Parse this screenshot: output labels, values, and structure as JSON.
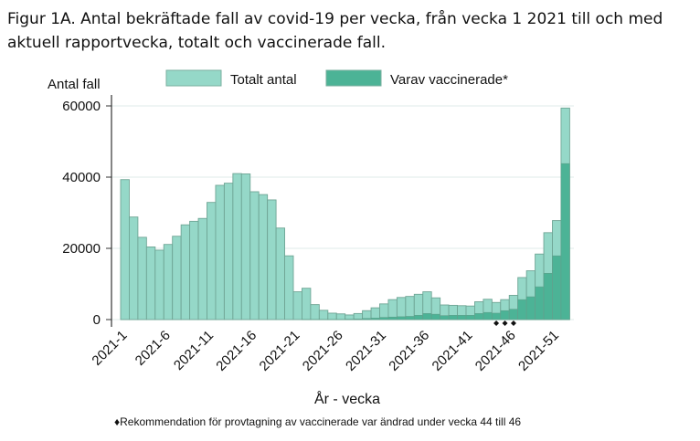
{
  "title": "Figur 1A. Antal bekräftade fall av covid-19 per vecka, från vecka 1 2021 till och med aktuell rapportvecka, totalt och vaccinerade fall.",
  "chart_data": {
    "type": "bar",
    "title": "Figur 1A. Antal bekräftade fall av covid-19 per vecka, från vecka 1 2021 till och med aktuell rapportvecka, totalt och vaccinerade fall.",
    "xlabel": "År - vecka",
    "ylabel": "Antal fall",
    "ylim": [
      0,
      60000
    ],
    "yticks": [
      "0",
      "20000",
      "40000",
      "60000"
    ],
    "ytick_values": [
      0,
      20000,
      40000,
      60000
    ],
    "xtick_labels": [
      "2021-1",
      "2021-6",
      "2021-11",
      "2021-16",
      "2021-21",
      "2021-26",
      "2021-31",
      "2021-36",
      "2021-41",
      "2021-46",
      "2021-51"
    ],
    "xtick_weeks": [
      1,
      6,
      11,
      16,
      21,
      26,
      31,
      36,
      41,
      46,
      51
    ],
    "weeks": [
      1,
      2,
      3,
      4,
      5,
      6,
      7,
      8,
      9,
      10,
      11,
      12,
      13,
      14,
      15,
      16,
      17,
      18,
      19,
      20,
      21,
      22,
      23,
      24,
      25,
      26,
      27,
      28,
      29,
      30,
      31,
      32,
      33,
      34,
      35,
      36,
      37,
      38,
      39,
      40,
      41,
      42,
      43,
      44,
      45,
      46,
      47,
      48,
      49,
      50,
      51,
      52
    ],
    "legend": [
      "Totalt antal",
      "Varav vaccinerade*"
    ],
    "legend_placement": "top",
    "grid": true,
    "series": [
      {
        "name": "Totalt antal",
        "color": "#95d8c8",
        "values": [
          39300,
          28800,
          23100,
          20400,
          19500,
          21100,
          23400,
          26600,
          27600,
          28400,
          32900,
          37700,
          38300,
          41000,
          40900,
          35900,
          35100,
          33600,
          25700,
          17900,
          7800,
          8800,
          4200,
          2600,
          1800,
          1600,
          1300,
          1700,
          2500,
          3300,
          4400,
          5600,
          6200,
          6500,
          7100,
          7800,
          6100,
          4100,
          4000,
          3900,
          3800,
          5000,
          5700,
          4800,
          5600,
          6800,
          11800,
          13700,
          18400,
          24400,
          27800,
          59400
        ]
      },
      {
        "name": "Varav vaccinerade*",
        "color": "#4cb396",
        "values": [
          0,
          0,
          0,
          0,
          0,
          0,
          0,
          0,
          0,
          0,
          0,
          0,
          0,
          0,
          0,
          0,
          0,
          0,
          0,
          0,
          0,
          50,
          50,
          50,
          50,
          50,
          100,
          150,
          300,
          400,
          600,
          700,
          800,
          900,
          1200,
          1700,
          1500,
          1100,
          1200,
          1200,
          1200,
          1700,
          2000,
          1800,
          2500,
          2900,
          5600,
          6400,
          9200,
          13000,
          17900,
          43800
        ]
      }
    ],
    "marked_weeks": [
      44,
      45,
      46
    ],
    "annotation": "♦Rekommendation för provtagning av vaccinerade var ändrad under vecka 44 till 46"
  }
}
